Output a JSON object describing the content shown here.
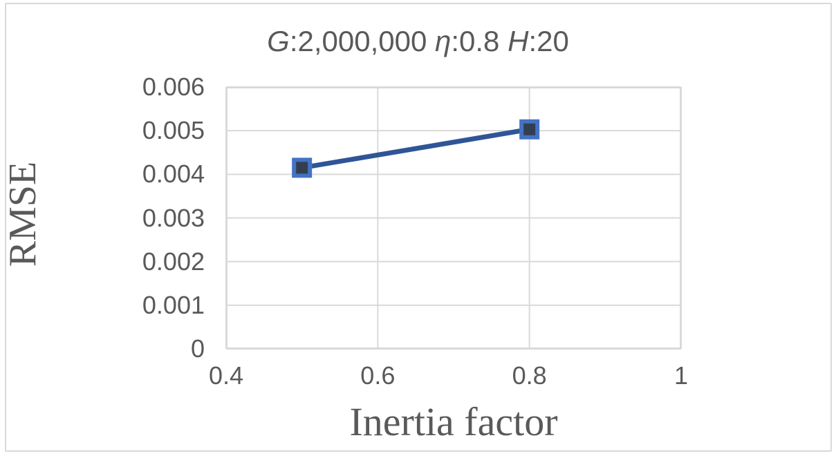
{
  "chart_data": {
    "type": "line",
    "title": "G:2,000,000 η:0.8 H:20",
    "title_parts": [
      {
        "t": "G",
        "italic": true
      },
      {
        "t": ":2,000,000 ",
        "italic": false
      },
      {
        "t": "η",
        "italic": true
      },
      {
        "t": ":0.8 ",
        "italic": false
      },
      {
        "t": "H",
        "italic": true
      },
      {
        "t": ":20",
        "italic": false
      }
    ],
    "xlabel": "Inertia factor",
    "ylabel": "RMSE",
    "series": [
      {
        "name": "RMSE",
        "x": [
          0.5,
          0.8
        ],
        "y": [
          0.00415,
          0.00503
        ]
      }
    ],
    "xlim": [
      0.4,
      1.0
    ],
    "ylim": [
      0,
      0.006
    ],
    "xticks": [
      0.4,
      0.6,
      0.8,
      1
    ],
    "xtick_labels": [
      "0.4",
      "0.6",
      "0.8",
      "1"
    ],
    "yticks": [
      0,
      0.001,
      0.002,
      0.003,
      0.004,
      0.005,
      0.006
    ],
    "ytick_labels": [
      "0",
      "0.001",
      "0.002",
      "0.003",
      "0.004",
      "0.005",
      "0.006"
    ],
    "grid": true,
    "legend": "none",
    "colors": {
      "line": "#2F5597",
      "marker_fill": "#333F50",
      "marker_border": "#4472C4",
      "grid": "#D9D9D9",
      "frame": "#D9D9D9",
      "text": "#595959"
    }
  }
}
